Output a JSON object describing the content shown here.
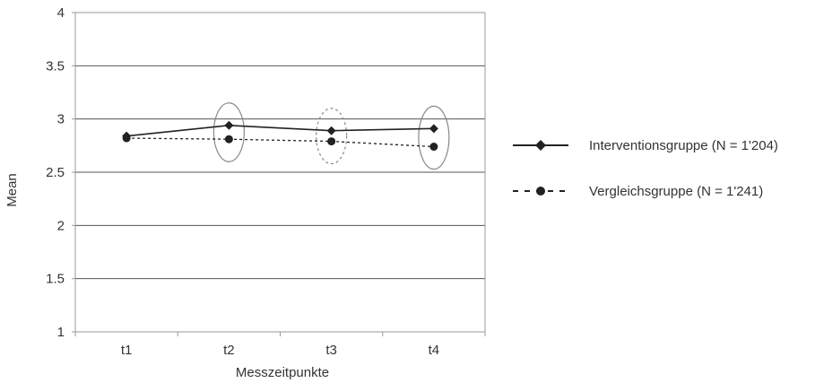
{
  "chart_data": {
    "type": "line",
    "title": "",
    "xlabel": "Messzeitpunkte",
    "ylabel": "Mean",
    "categories": [
      "t1",
      "t2",
      "t3",
      "t4"
    ],
    "ylim": [
      1,
      4
    ],
    "y_ticks": [
      "1",
      "1.5",
      "2",
      "2.5",
      "3",
      "3.5",
      "4"
    ],
    "grid": true,
    "legend_position": "right",
    "series": [
      {
        "name": "Interventionsgruppe (N = 1'204)",
        "values": [
          2.84,
          2.94,
          2.89,
          2.91
        ],
        "line_style": "solid",
        "marker": "diamond",
        "color": "#222222"
      },
      {
        "name": "Vergleichsgruppe (N = 1'241)",
        "values": [
          2.82,
          2.81,
          2.79,
          2.74
        ],
        "line_style": "dotted",
        "marker": "circle",
        "color": "#222222"
      }
    ],
    "annotations": [
      {
        "category": "t2",
        "shape": "ellipse",
        "style": "solid"
      },
      {
        "category": "t3",
        "shape": "ellipse",
        "style": "dashed"
      },
      {
        "category": "t4",
        "shape": "ellipse",
        "style": "solid"
      }
    ]
  },
  "colors": {
    "axis": "#999999",
    "grid": "#555555",
    "ellipse": "#888888"
  }
}
